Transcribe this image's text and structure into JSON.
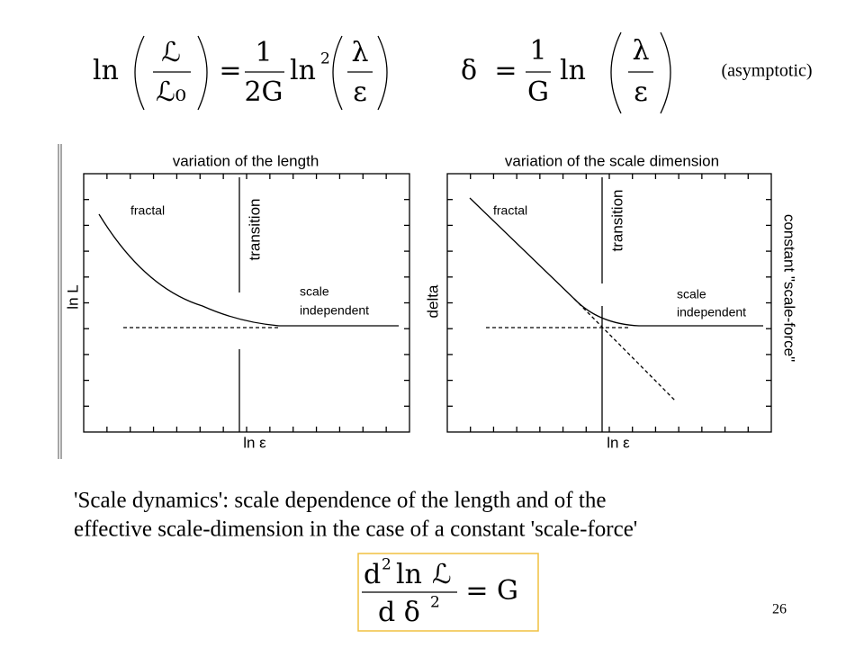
{
  "formula_length": {
    "fn": "ln",
    "frac_num": "ℒ",
    "frac_den": "ℒ₀",
    "equals": "=",
    "coef_num": "1",
    "coef_den": "2G",
    "fn2": "ln",
    "power": "2",
    "arg_num": "λ",
    "arg_den": "ε"
  },
  "formula_delta": {
    "symbol": "δ",
    "equals": "=",
    "coef_num": "1",
    "coef_den": "G",
    "fn": "ln",
    "arg_num": "λ",
    "arg_den": "ε"
  },
  "note": "(asymptotic)",
  "plots": [
    {
      "title": "variation of the length",
      "y_label": "ln L",
      "x_label": "ln ε",
      "fractal": "fractal",
      "transition": "transition",
      "scale_independent": [
        "scale",
        "independent"
      ]
    },
    {
      "title": "variation of the scale dimension",
      "y_label": "delta",
      "x_label": "ln ε",
      "fractal": "fractal",
      "transition": "transition",
      "scale_independent": [
        "scale",
        "independent"
      ],
      "side_label": "constant \"scale-force\""
    }
  ],
  "caption": [
    "'Scale dynamics': scale dependence of the length and of the",
    "effective scale-dimension in the case of a constant 'scale-force'"
  ],
  "formula_force": {
    "num_d": "d",
    "num_power": "2",
    "num_fn": "ln",
    "num_L": "ℒ",
    "den": "d δ",
    "den_power": "2",
    "equals": "=",
    "rhs": "G"
  },
  "page_number": "26"
}
